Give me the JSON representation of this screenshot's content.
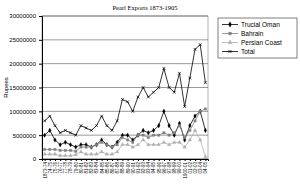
{
  "chart_data": {
    "type": "line",
    "title": "Pearl Exports 1873-1905",
    "y_label": "Rupees",
    "categories": [
      "1873-74",
      "74-75",
      "75-76",
      "76-77",
      "77-78",
      "78-79",
      "79-80",
      "80-81",
      "81-82",
      "82-83",
      "83-84",
      "84-85",
      "85-86",
      "86-87",
      "87-88",
      "88-89",
      "89-90",
      "90-91",
      "91-92",
      "92-93",
      "93-94",
      "94-95",
      "95-96",
      "96-97",
      "97-98",
      "98-99",
      "99-00",
      "1900-01",
      "01-02",
      "02-03",
      "03-04",
      "04-05"
    ],
    "series": [
      {
        "name": "Trucial Oman",
        "color": "#000000",
        "marker": "diamond",
        "values": [
          5000000,
          6000000,
          4000000,
          3000000,
          3500000,
          3000000,
          2500000,
          3000000,
          3000000,
          2500000,
          3000000,
          4000000,
          3000000,
          2500000,
          3500000,
          5000000,
          5000000,
          4000000,
          5000000,
          6000000,
          5500000,
          6000000,
          7000000,
          10000000,
          7000000,
          5000000,
          7500000,
          4000000,
          7000000,
          9000000,
          10000000,
          6000000
        ]
      },
      {
        "name": "Bahrain",
        "color": "#808080",
        "marker": "square",
        "values": [
          2000000,
          2000000,
          2000000,
          1800000,
          1800000,
          1800000,
          1600000,
          2500000,
          2500000,
          2500000,
          3000000,
          3500000,
          3000000,
          2500000,
          3000000,
          4500000,
          4000000,
          3500000,
          5000000,
          5000000,
          4500000,
          5000000,
          5000000,
          5500000,
          5000000,
          5500000,
          7000000,
          4500000,
          6000000,
          8000000,
          10000000,
          10500000
        ]
      },
      {
        "name": "Persian Coast",
        "color": "#b0b0b0",
        "marker": "triangle",
        "values": [
          1000000,
          1000000,
          1000000,
          700000,
          700000,
          700000,
          900000,
          1500000,
          1000000,
          1000000,
          1000000,
          1500000,
          1000000,
          1000000,
          1500000,
          3000000,
          3000000,
          2500000,
          3000000,
          4000000,
          3000000,
          3000000,
          3000000,
          3500000,
          3000000,
          3500000,
          3500000,
          2500000,
          4000000,
          6000000,
          4000000,
          500000
        ]
      },
      {
        "name": "Total",
        "color": "#000000",
        "marker": "cross",
        "values": [
          8000000,
          9000000,
          7000000,
          5500000,
          6000000,
          5500000,
          5000000,
          7000000,
          6500000,
          6000000,
          7000000,
          9000000,
          7000000,
          6000000,
          8000000,
          12500000,
          12000000,
          10000000,
          13000000,
          15000000,
          13000000,
          14000000,
          15000000,
          19000000,
          15000000,
          14000000,
          18000000,
          11000000,
          17000000,
          23000000,
          24000000,
          16000000
        ]
      }
    ],
    "ylim": [
      0,
      30000000
    ],
    "yticks": [
      0,
      5000000,
      10000000,
      15000000,
      20000000,
      25000000,
      30000000
    ],
    "grid": true,
    "legend": "right"
  }
}
